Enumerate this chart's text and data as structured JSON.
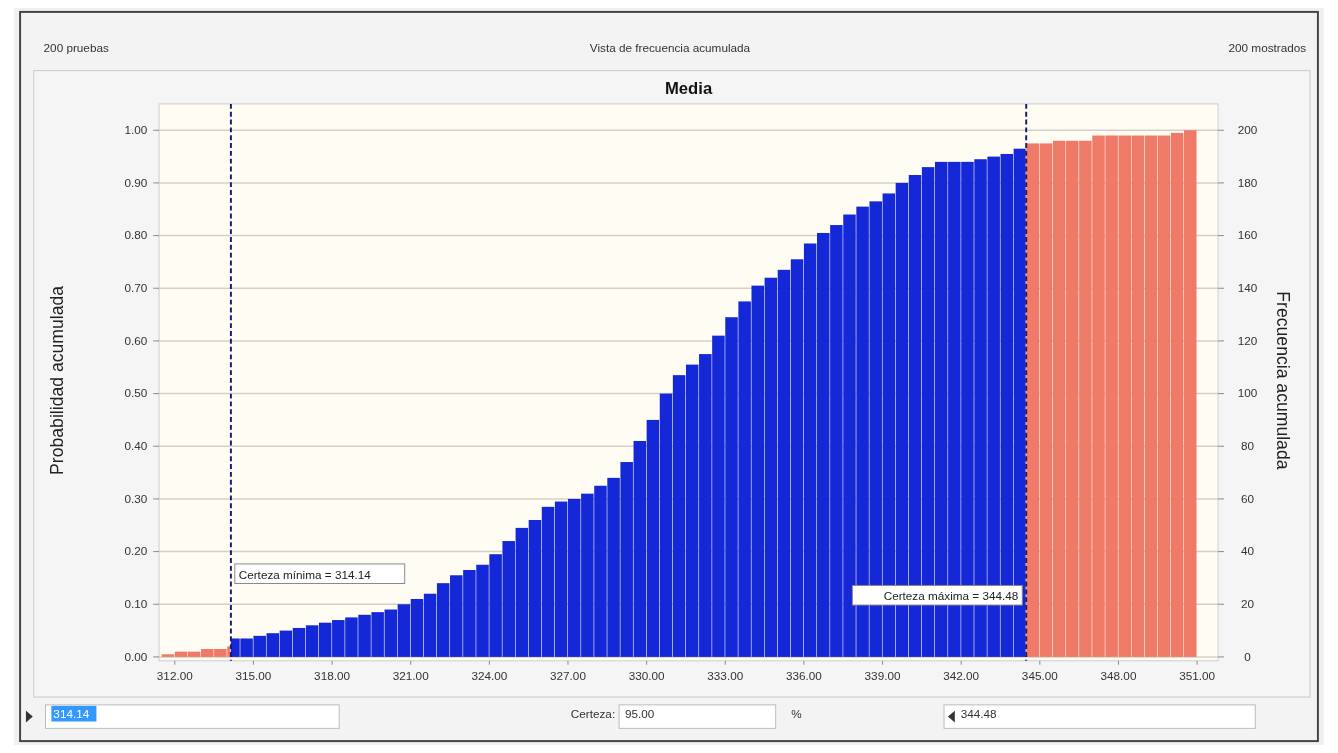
{
  "chart_data": {
    "type": "histogram",
    "title": "Media",
    "ylabel": "Probabilidad acumulada",
    "y2label": "Frecuencia acumulada",
    "annotations": [
      "200 pruebas",
      "Vista de frecuencia acumulada",
      "200 mostrados",
      "314.14",
      "Certeza:",
      "95.00",
      "%",
      "344.48"
    ],
    "bins": [
      311.5,
      312,
      312.5,
      313,
      313.5,
      314,
      314.14,
      314.5,
      315,
      315.5,
      316,
      316.5,
      317,
      317.5,
      318,
      318.5,
      319,
      319.5,
      320,
      320.5,
      321,
      321.5,
      322,
      322.5,
      323,
      323.5,
      324,
      324.5,
      325,
      325.5,
      326,
      326.5,
      327,
      327.5,
      328,
      328.5,
      329,
      329.5,
      330,
      330.5,
      331,
      331.5,
      332,
      332.5,
      333,
      333.5,
      334,
      334.5,
      335,
      335.5,
      336,
      336.5,
      337,
      337.5,
      338,
      338.5,
      339,
      339.5,
      340,
      340.5,
      341,
      341.5,
      342,
      342.5,
      343,
      343.5,
      344,
      344.48,
      345,
      345.5,
      346,
      346.5,
      347,
      347.5,
      348,
      348.5,
      349,
      349.5,
      350,
      350.5,
      351
    ],
    "values": [
      0.005,
      0.01,
      0.01,
      0.015,
      0.015,
      0.02,
      0.035,
      0.035,
      0.04,
      0.045,
      0.05,
      0.055,
      0.06,
      0.065,
      0.07,
      0.075,
      0.08,
      0.085,
      0.09,
      0.1,
      0.11,
      0.12,
      0.14,
      0.155,
      0.165,
      0.175,
      0.195,
      0.22,
      0.245,
      0.26,
      0.285,
      0.295,
      0.3,
      0.31,
      0.325,
      0.34,
      0.37,
      0.41,
      0.45,
      0.5,
      0.535,
      0.555,
      0.575,
      0.61,
      0.645,
      0.675,
      0.705,
      0.72,
      0.735,
      0.755,
      0.785,
      0.805,
      0.82,
      0.84,
      0.855,
      0.865,
      0.88,
      0.9,
      0.915,
      0.93,
      0.94,
      0.94,
      0.94,
      0.945,
      0.95,
      0.955,
      0.965,
      0.975,
      0.975,
      0.98,
      0.98,
      0.98,
      0.99,
      0.99,
      0.99,
      0.99,
      0.99,
      0.99,
      0.995,
      1.0
    ],
    "colors": [
      "#f07a68",
      "#f07a68",
      "#f07a68",
      "#f07a68",
      "#f07a68",
      "#f07a68",
      "#1428d8",
      "#1428d8",
      "#1428d8",
      "#1428d8",
      "#1428d8",
      "#1428d8",
      "#1428d8",
      "#1428d8",
      "#1428d8",
      "#1428d8",
      "#1428d8",
      "#1428d8",
      "#1428d8",
      "#1428d8",
      "#1428d8",
      "#1428d8",
      "#1428d8",
      "#1428d8",
      "#1428d8",
      "#1428d8",
      "#1428d8",
      "#1428d8",
      "#1428d8",
      "#1428d8",
      "#1428d8",
      "#1428d8",
      "#1428d8",
      "#1428d8",
      "#1428d8",
      "#1428d8",
      "#1428d8",
      "#1428d8",
      "#1428d8",
      "#1428d8",
      "#1428d8",
      "#1428d8",
      "#1428d8",
      "#1428d8",
      "#1428d8",
      "#1428d8",
      "#1428d8",
      "#1428d8",
      "#1428d8",
      "#1428d8",
      "#1428d8",
      "#1428d8",
      "#1428d8",
      "#1428d8",
      "#1428d8",
      "#1428d8",
      "#1428d8",
      "#1428d8",
      "#1428d8",
      "#1428d8",
      "#1428d8",
      "#1428d8",
      "#1428d8",
      "#1428d8",
      "#1428d8",
      "#1428d8",
      "#1428d8",
      "#f07a68",
      "#f07a68",
      "#f07a68",
      "#f07a68",
      "#f07a68",
      "#f07a68",
      "#f07a68",
      "#f07a68",
      "#f07a68",
      "#f07a68",
      "#f07a68",
      "#f07a68",
      "#f07a68"
    ],
    "xlim": [
      311.4,
      351.8
    ],
    "xticks": [
      {
        "value": 312,
        "label": "312.00"
      },
      {
        "value": 315,
        "label": "315.00"
      },
      {
        "value": 318,
        "label": "318.00"
      },
      {
        "value": 321,
        "label": "321.00"
      },
      {
        "value": 324,
        "label": "324.00"
      },
      {
        "value": 327,
        "label": "327.00"
      },
      {
        "value": 330,
        "label": "330.00"
      },
      {
        "value": 333,
        "label": "333.00"
      },
      {
        "value": 336,
        "label": "336.00"
      },
      {
        "value": 339,
        "label": "339.00"
      },
      {
        "value": 342,
        "label": "342.00"
      },
      {
        "value": 345,
        "label": "345.00"
      },
      {
        "value": 348,
        "label": "348.00"
      },
      {
        "value": 351,
        "label": "351.00"
      }
    ],
    "ylim": [
      0,
      1.05
    ],
    "yticks": [
      {
        "value": 0,
        "label": "0.00"
      },
      {
        "value": 0.1,
        "label": "0.10"
      },
      {
        "value": 0.2,
        "label": "0.20"
      },
      {
        "value": 0.3,
        "label": "0.30"
      },
      {
        "value": 0.4,
        "label": "0.40"
      },
      {
        "value": 0.5,
        "label": "0.50"
      },
      {
        "value": 0.6,
        "label": "0.60"
      },
      {
        "value": 0.7,
        "label": "0.70"
      },
      {
        "value": 0.8,
        "label": "0.80"
      },
      {
        "value": 0.9,
        "label": "0.90"
      },
      {
        "value": 1.0,
        "label": "1.00"
      }
    ],
    "y2lim": [
      0,
      210
    ],
    "y2ticks": [
      0,
      20,
      40,
      60,
      80,
      100,
      120,
      140,
      160,
      180,
      200
    ],
    "ref_lines": [
      {
        "axis": "x",
        "value": 314.14,
        "label": "Certeza mínima = 314.14",
        "color": "#1a1a6e",
        "line_style": "dashed"
      },
      {
        "axis": "x",
        "value": 344.48,
        "label": "Certeza máxima = 344.48",
        "color": "#1a1a6e",
        "line_style": "dashed"
      }
    ],
    "grid": "y"
  }
}
